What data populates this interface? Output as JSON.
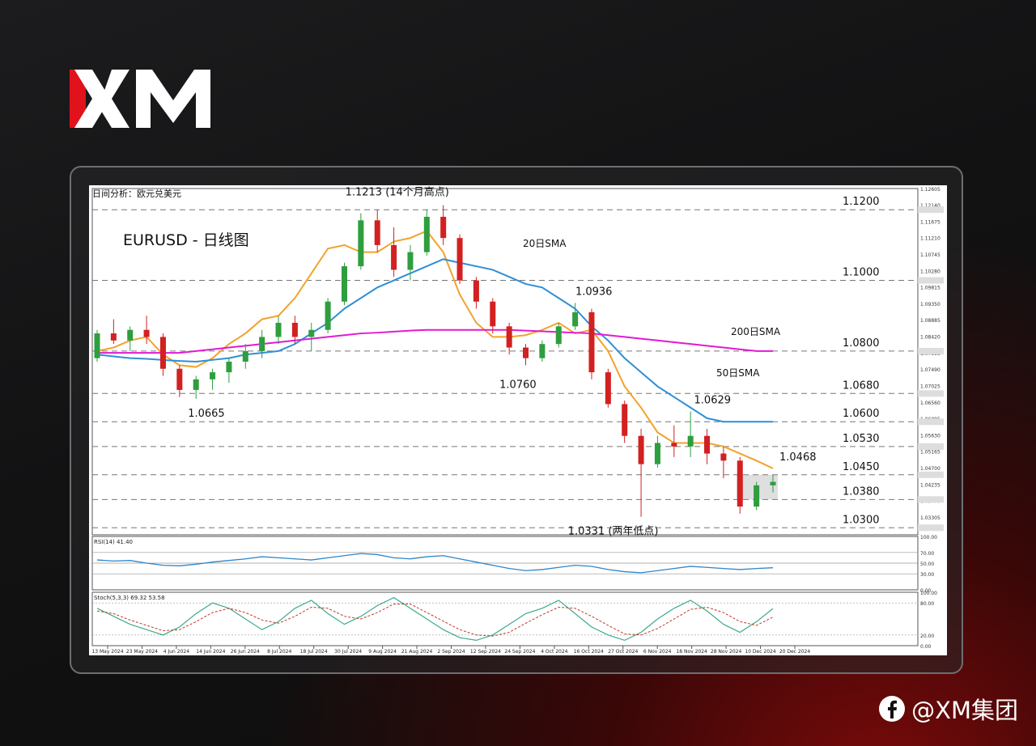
{
  "brand": {
    "logo_text": "XM",
    "footer_text": "@XM集团",
    "accent_color": "#e1121b",
    "icon": "facebook-icon"
  },
  "colors": {
    "sma20": "#f3a22c",
    "sma50": "#2f8fd6",
    "sma200": "#e21ad2",
    "bull": "#2e9e3e",
    "bear": "#d32020",
    "rsi": "#2e86c8",
    "stoch_k": "#3daa8a",
    "stoch_d": "#c0392b"
  },
  "chart_data": {
    "type": "line",
    "header": "日间分析：欧元兑美元",
    "title": "EURUSD - 日线图",
    "x_tick_labels": [
      "13 May 2024",
      "23 May 2024",
      "4 Jun 2024",
      "14 Jun 2024",
      "26 Jun 2024",
      "8 Jul 2024",
      "18 Jul 2024",
      "30 Jul 2024",
      "9 Aug 2024",
      "21 Aug 2024",
      "2 Sep 2024",
      "12 Sep 2024",
      "24 Sep 2024",
      "4 Oct 2024",
      "16 Oct 2024",
      "27 Oct 2024",
      "6 Nov 2024",
      "18 Nov 2024",
      "28 Nov 2024",
      "10 Dec 2024",
      "20 Dec 2024"
    ],
    "ylim": [
      1.028,
      1.126
    ],
    "y_tick_labels": [
      1.12605,
      1.1214,
      1.11675,
      1.1121,
      1.10745,
      1.1028,
      1.09815,
      1.0935,
      1.08885,
      1.0842,
      1.07955,
      1.0749,
      1.07025,
      1.0656,
      1.06095,
      1.0563,
      1.05165,
      1.047,
      1.04235,
      1.0377,
      1.03305
    ],
    "levels": [
      1.12,
      1.1,
      1.08,
      1.068,
      1.06,
      1.053,
      1.045,
      1.038,
      1.03
    ],
    "level_labels": [
      "1.1200",
      "1.1000",
      "1.0800",
      "1.0680",
      "1.0600",
      "1.0530",
      "1.0450",
      "1.0380",
      "1.0300"
    ],
    "annotations": [
      {
        "text": "1.1213  (14个月高点)",
        "x": 18,
        "y": 1.1213
      },
      {
        "text": "1.0665",
        "x": 6,
        "y": 1.0665
      },
      {
        "text": "1.0760",
        "x": 25,
        "y": 1.076
      },
      {
        "text": "1.0936",
        "x": 30,
        "y": 1.0936
      },
      {
        "text": "1.0629",
        "x": 37,
        "y": 1.0629
      },
      {
        "text": "1.0468",
        "x": 41,
        "y": 1.0468
      },
      {
        "text": "1.0331 (两年低点)",
        "x": 32,
        "y": 1.0331
      }
    ],
    "series": [
      {
        "name": "20日SMA",
        "values": [
          1.08,
          1.081,
          1.083,
          1.084,
          1.079,
          1.076,
          1.0755,
          1.078,
          1.082,
          1.085,
          1.089,
          1.09,
          1.095,
          1.102,
          1.109,
          1.11,
          1.108,
          1.108,
          1.111,
          1.112,
          1.114,
          1.108,
          1.096,
          1.088,
          1.084,
          1.084,
          1.0845,
          1.086,
          1.088,
          1.085,
          1.086,
          1.08,
          1.07,
          1.064,
          1.057,
          1.054,
          1.054,
          1.054,
          1.053,
          1.051,
          1.049,
          1.0468
        ]
      },
      {
        "name": "50日SMA",
        "values": [
          1.079,
          1.0785,
          1.078,
          1.0778,
          1.0775,
          1.0772,
          1.077,
          1.0775,
          1.078,
          1.079,
          1.0795,
          1.08,
          1.082,
          1.085,
          1.088,
          1.092,
          1.095,
          1.098,
          1.1,
          1.102,
          1.104,
          1.106,
          1.105,
          1.104,
          1.103,
          1.101,
          1.099,
          1.098,
          1.095,
          1.092,
          1.087,
          1.083,
          1.078,
          1.074,
          1.07,
          1.067,
          1.064,
          1.061,
          1.06,
          1.06,
          1.06,
          1.06
        ]
      },
      {
        "name": "200日SMA",
        "values": [
          1.0795,
          1.0795,
          1.0795,
          1.0795,
          1.0795,
          1.0795,
          1.08,
          1.0805,
          1.081,
          1.0815,
          1.082,
          1.0825,
          1.083,
          1.0835,
          1.084,
          1.0845,
          1.085,
          1.0852,
          1.0855,
          1.0858,
          1.086,
          1.086,
          1.086,
          1.086,
          1.086,
          1.086,
          1.0858,
          1.0856,
          1.0854,
          1.0852,
          1.085,
          1.0845,
          1.084,
          1.0835,
          1.083,
          1.0825,
          1.082,
          1.0815,
          1.081,
          1.0805,
          1.08,
          1.08
        ]
      }
    ],
    "candles": [
      [
        1.078,
        1.086,
        1.077,
        1.085
      ],
      [
        1.085,
        1.089,
        1.082,
        1.083
      ],
      [
        1.083,
        1.087,
        1.08,
        1.086
      ],
      [
        1.086,
        1.09,
        1.082,
        1.084
      ],
      [
        1.084,
        1.085,
        1.073,
        1.075
      ],
      [
        1.075,
        1.076,
        1.067,
        1.069
      ],
      [
        1.069,
        1.073,
        1.0665,
        1.072
      ],
      [
        1.072,
        1.075,
        1.069,
        1.074
      ],
      [
        1.074,
        1.078,
        1.071,
        1.077
      ],
      [
        1.077,
        1.082,
        1.075,
        1.08
      ],
      [
        1.08,
        1.086,
        1.078,
        1.084
      ],
      [
        1.084,
        1.09,
        1.082,
        1.088
      ],
      [
        1.088,
        1.09,
        1.082,
        1.084
      ],
      [
        1.084,
        1.088,
        1.08,
        1.086
      ],
      [
        1.086,
        1.095,
        1.085,
        1.094
      ],
      [
        1.094,
        1.105,
        1.093,
        1.104
      ],
      [
        1.104,
        1.119,
        1.103,
        1.117
      ],
      [
        1.117,
        1.12,
        1.108,
        1.11
      ],
      [
        1.11,
        1.115,
        1.101,
        1.103
      ],
      [
        1.103,
        1.11,
        1.1,
        1.108
      ],
      [
        1.108,
        1.12,
        1.107,
        1.118
      ],
      [
        1.118,
        1.1213,
        1.11,
        1.112
      ],
      [
        1.112,
        1.113,
        1.099,
        1.1
      ],
      [
        1.1,
        1.101,
        1.092,
        1.094
      ],
      [
        1.094,
        1.095,
        1.085,
        1.087
      ],
      [
        1.087,
        1.088,
        1.079,
        1.081
      ],
      [
        1.081,
        1.082,
        1.076,
        1.078
      ],
      [
        1.078,
        1.083,
        1.077,
        1.082
      ],
      [
        1.082,
        1.088,
        1.081,
        1.087
      ],
      [
        1.087,
        1.0936,
        1.086,
        1.091
      ],
      [
        1.091,
        1.092,
        1.072,
        1.074
      ],
      [
        1.074,
        1.075,
        1.064,
        1.065
      ],
      [
        1.065,
        1.066,
        1.054,
        1.056
      ],
      [
        1.056,
        1.058,
        1.0331,
        1.048
      ],
      [
        1.048,
        1.056,
        1.047,
        1.054
      ],
      [
        1.054,
        1.059,
        1.05,
        1.053
      ],
      [
        1.053,
        1.0629,
        1.05,
        1.056
      ],
      [
        1.056,
        1.058,
        1.048,
        1.051
      ],
      [
        1.051,
        1.053,
        1.044,
        1.049
      ],
      [
        1.049,
        1.05,
        1.034,
        1.036
      ],
      [
        1.036,
        1.043,
        1.035,
        1.042
      ],
      [
        1.042,
        1.045,
        1.04,
        1.043
      ]
    ],
    "rsi": {
      "label": "RSI(14) 41.40",
      "ticks": [
        "100.00",
        "70.00",
        "50.00",
        "30.00",
        "0.00"
      ],
      "levels": [
        70,
        50,
        30
      ],
      "values": [
        56,
        54,
        55,
        50,
        46,
        45,
        48,
        52,
        55,
        58,
        62,
        60,
        58,
        56,
        60,
        64,
        68,
        66,
        60,
        58,
        62,
        64,
        58,
        52,
        46,
        40,
        36,
        38,
        42,
        46,
        44,
        38,
        34,
        32,
        36,
        40,
        44,
        42,
        40,
        38,
        40,
        41.4
      ]
    },
    "stoch": {
      "label": "Stoch(5,3,3) 69.32 53.58",
      "ticks": [
        "100.00",
        "80.00",
        "20.00",
        "0.00"
      ],
      "levels": [
        80,
        20
      ],
      "k": [
        70,
        55,
        40,
        30,
        20,
        35,
        60,
        80,
        70,
        50,
        30,
        45,
        70,
        85,
        60,
        40,
        55,
        75,
        90,
        70,
        50,
        30,
        15,
        10,
        20,
        40,
        60,
        70,
        85,
        60,
        35,
        20,
        10,
        25,
        50,
        70,
        85,
        65,
        40,
        25,
        45,
        69.32
      ],
      "d": [
        65,
        60,
        48,
        38,
        28,
        30,
        45,
        62,
        70,
        62,
        48,
        42,
        55,
        72,
        70,
        55,
        50,
        62,
        78,
        78,
        62,
        46,
        30,
        20,
        18,
        25,
        42,
        58,
        72,
        70,
        55,
        38,
        22,
        20,
        32,
        50,
        68,
        72,
        62,
        45,
        38,
        53.58
      ]
    }
  }
}
